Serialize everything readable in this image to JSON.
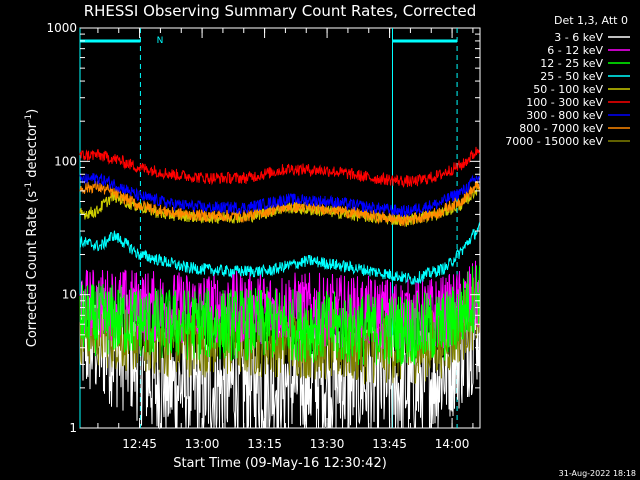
{
  "chart_data": {
    "type": "line",
    "title": "RHESSI Observing Summary Count Rates, Corrected",
    "xlabel": "Start Time (09-May-16 12:30:42)",
    "ylabel_parts": [
      "Corrected Count Rate (s",
      "-1",
      " detector",
      "-1",
      ")"
    ],
    "yscale": "log",
    "ylim": [
      1,
      1000
    ],
    "y_ticks": [
      {
        "value": 1,
        "label": "1"
      },
      {
        "value": 10,
        "label": "10"
      },
      {
        "value": 100,
        "label": "100"
      },
      {
        "value": 1000,
        "label": "1000"
      }
    ],
    "x_ticks": [
      {
        "minutes": 14.3,
        "label": "12:45"
      },
      {
        "minutes": 29.3,
        "label": "13:00"
      },
      {
        "minutes": 44.3,
        "label": "13:15"
      },
      {
        "minutes": 59.3,
        "label": "13:30"
      },
      {
        "minutes": 74.3,
        "label": "13:45"
      },
      {
        "minutes": 89.3,
        "label": "14:00"
      }
    ],
    "x_range_minutes": [
      0,
      96
    ],
    "legend_title": "Det 1,3, Att 0",
    "legend_placement": "right",
    "attenuator_label": "N",
    "night_intervals_minutes": [
      [
        0,
        14.5
      ],
      [
        75,
        90.5
      ]
    ],
    "vlines_minutes": [
      0,
      14.5,
      75,
      90.5
    ],
    "series": [
      {
        "name": "3 - 6 keV",
        "color": "#ffffff",
        "base": 3.0,
        "noise": 0.5,
        "points": [
          [
            0,
            4.5
          ],
          [
            6,
            4.2
          ],
          [
            12,
            3.5
          ],
          [
            18,
            2.2
          ],
          [
            30,
            2.0
          ],
          [
            45,
            2.2
          ],
          [
            58,
            2.3
          ],
          [
            70,
            2.2
          ],
          [
            80,
            2.0
          ],
          [
            86,
            2.5
          ],
          [
            92,
            4.0
          ],
          [
            96,
            6.0
          ]
        ]
      },
      {
        "name": "6 - 12 keV",
        "color": "#ff00ff",
        "points": [
          [
            0,
            8.5
          ],
          [
            10,
            8.5
          ],
          [
            20,
            8.0
          ],
          [
            35,
            8.0
          ],
          [
            50,
            8.0
          ],
          [
            65,
            7.5
          ],
          [
            80,
            7.0
          ],
          [
            88,
            7.5
          ],
          [
            92,
            8.5
          ],
          [
            96,
            10
          ]
        ]
      },
      {
        "name": "12 - 25 keV",
        "color": "#00ff00",
        "points": [
          [
            0,
            6.5
          ],
          [
            10,
            6.5
          ],
          [
            20,
            6.0
          ],
          [
            35,
            6.0
          ],
          [
            50,
            6.0
          ],
          [
            65,
            5.5
          ],
          [
            80,
            5.5
          ],
          [
            88,
            5.8
          ],
          [
            92,
            7.5
          ],
          [
            96,
            11
          ]
        ]
      },
      {
        "name": "25 - 50 keV",
        "color": "#00ffff",
        "points": [
          [
            0,
            25
          ],
          [
            5,
            23
          ],
          [
            8,
            28
          ],
          [
            14,
            20
          ],
          [
            25,
            16
          ],
          [
            35,
            15
          ],
          [
            45,
            15
          ],
          [
            55,
            18
          ],
          [
            60,
            17
          ],
          [
            70,
            15
          ],
          [
            80,
            13
          ],
          [
            88,
            16
          ],
          [
            92,
            22
          ],
          [
            96,
            32
          ]
        ]
      },
      {
        "name": "50 - 100 keV",
        "color": "#cccc00",
        "points": [
          [
            0,
            40
          ],
          [
            4,
            42
          ],
          [
            8,
            55
          ],
          [
            12,
            48
          ],
          [
            20,
            40
          ],
          [
            30,
            38
          ],
          [
            40,
            38
          ],
          [
            50,
            45
          ],
          [
            60,
            42
          ],
          [
            70,
            38
          ],
          [
            78,
            36
          ],
          [
            86,
            40
          ],
          [
            92,
            48
          ],
          [
            96,
            65
          ]
        ]
      },
      {
        "name": "100 - 300 keV",
        "color": "#ff0000",
        "points": [
          [
            0,
            110
          ],
          [
            4,
            112
          ],
          [
            8,
            105
          ],
          [
            14,
            90
          ],
          [
            22,
            80
          ],
          [
            30,
            75
          ],
          [
            40,
            75
          ],
          [
            50,
            88
          ],
          [
            60,
            85
          ],
          [
            70,
            75
          ],
          [
            80,
            70
          ],
          [
            86,
            78
          ],
          [
            92,
            95
          ],
          [
            96,
            125
          ]
        ]
      },
      {
        "name": "300 - 800 keV",
        "color": "#0000ff",
        "points": [
          [
            0,
            72
          ],
          [
            4,
            75
          ],
          [
            8,
            68
          ],
          [
            14,
            55
          ],
          [
            22,
            48
          ],
          [
            30,
            45
          ],
          [
            40,
            45
          ],
          [
            50,
            52
          ],
          [
            60,
            50
          ],
          [
            70,
            45
          ],
          [
            78,
            42
          ],
          [
            86,
            48
          ],
          [
            92,
            60
          ],
          [
            96,
            78
          ]
        ]
      },
      {
        "name": "800 - 7000 keV",
        "color": "#ff8800",
        "points": [
          [
            0,
            62
          ],
          [
            4,
            65
          ],
          [
            8,
            58
          ],
          [
            14,
            47
          ],
          [
            22,
            41
          ],
          [
            30,
            39
          ],
          [
            40,
            39
          ],
          [
            50,
            46
          ],
          [
            60,
            44
          ],
          [
            70,
            39
          ],
          [
            78,
            36
          ],
          [
            86,
            41
          ],
          [
            92,
            52
          ],
          [
            96,
            68
          ]
        ]
      },
      {
        "name": "7000 - 15000 keV",
        "color": "#808000",
        "points": [
          [
            0,
            5.5
          ],
          [
            10,
            5.0
          ],
          [
            20,
            4.5
          ],
          [
            35,
            4.5
          ],
          [
            50,
            4.5
          ],
          [
            65,
            4.0
          ],
          [
            80,
            4.0
          ],
          [
            88,
            4.5
          ],
          [
            92,
            6.0
          ],
          [
            96,
            8.0
          ]
        ]
      }
    ]
  },
  "footer": {
    "timestamp": "31-Aug-2022 18:18"
  }
}
